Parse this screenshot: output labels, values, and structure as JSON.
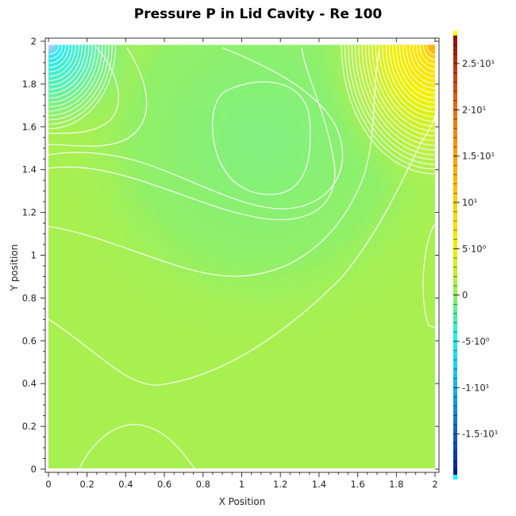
{
  "chart_data": {
    "type": "heatmap",
    "subtype": "filled contour",
    "title": "Pressure P in Lid Cavity - Re 100",
    "xlabel": "X Position",
    "ylabel": "Y position",
    "xlim": [
      0,
      2
    ],
    "ylim": [
      0,
      2
    ],
    "xticks": [
      "0",
      "0.2",
      "0.4",
      "0.6",
      "0.8",
      "1",
      "1.2",
      "1.4",
      "1.6",
      "1.8",
      "2"
    ],
    "yticks": [
      "0",
      "0.2",
      "0.4",
      "0.6",
      "0.8",
      "1",
      "1.2",
      "1.4",
      "1.6",
      "1.8",
      "2"
    ],
    "colorbar": {
      "range": [
        -19.4,
        28
      ],
      "ticks": [
        {
          "value": 25,
          "label": "2.5·10¹"
        },
        {
          "value": 20,
          "label": "2·10¹"
        },
        {
          "value": 15,
          "label": "1.5·10¹"
        },
        {
          "value": 10,
          "label": "10¹"
        },
        {
          "value": 5,
          "label": "5·10⁰"
        },
        {
          "value": 0,
          "label": "0"
        },
        {
          "value": -5,
          "label": "-5·10⁰"
        },
        {
          "value": -10,
          "label": "-1·10¹"
        },
        {
          "value": -15,
          "label": "-1.5·10¹"
        }
      ],
      "colors": [
        {
          "value": -19.4,
          "color": "#0a1a8a"
        },
        {
          "value": -15,
          "color": "#1060c8"
        },
        {
          "value": -10,
          "color": "#18b4e8"
        },
        {
          "value": -5,
          "color": "#20f0f0"
        },
        {
          "value": -2,
          "color": "#50f0a0"
        },
        {
          "value": 0,
          "color": "#90f060"
        },
        {
          "value": 5,
          "color": "#f0f000"
        },
        {
          "value": 10,
          "color": "#ffd000"
        },
        {
          "value": 15,
          "color": "#ffa000"
        },
        {
          "value": 20,
          "color": "#e87010"
        },
        {
          "value": 25,
          "color": "#b83010"
        },
        {
          "value": 28,
          "color": "#8a1008"
        }
      ],
      "over_color": "#ffff00",
      "under_color": "#00ffff"
    },
    "features": {
      "high_pressure_corner": "top-right",
      "low_pressure_corner": "top-left",
      "local_minimum_center": [
        1.15,
        1.5
      ]
    }
  }
}
